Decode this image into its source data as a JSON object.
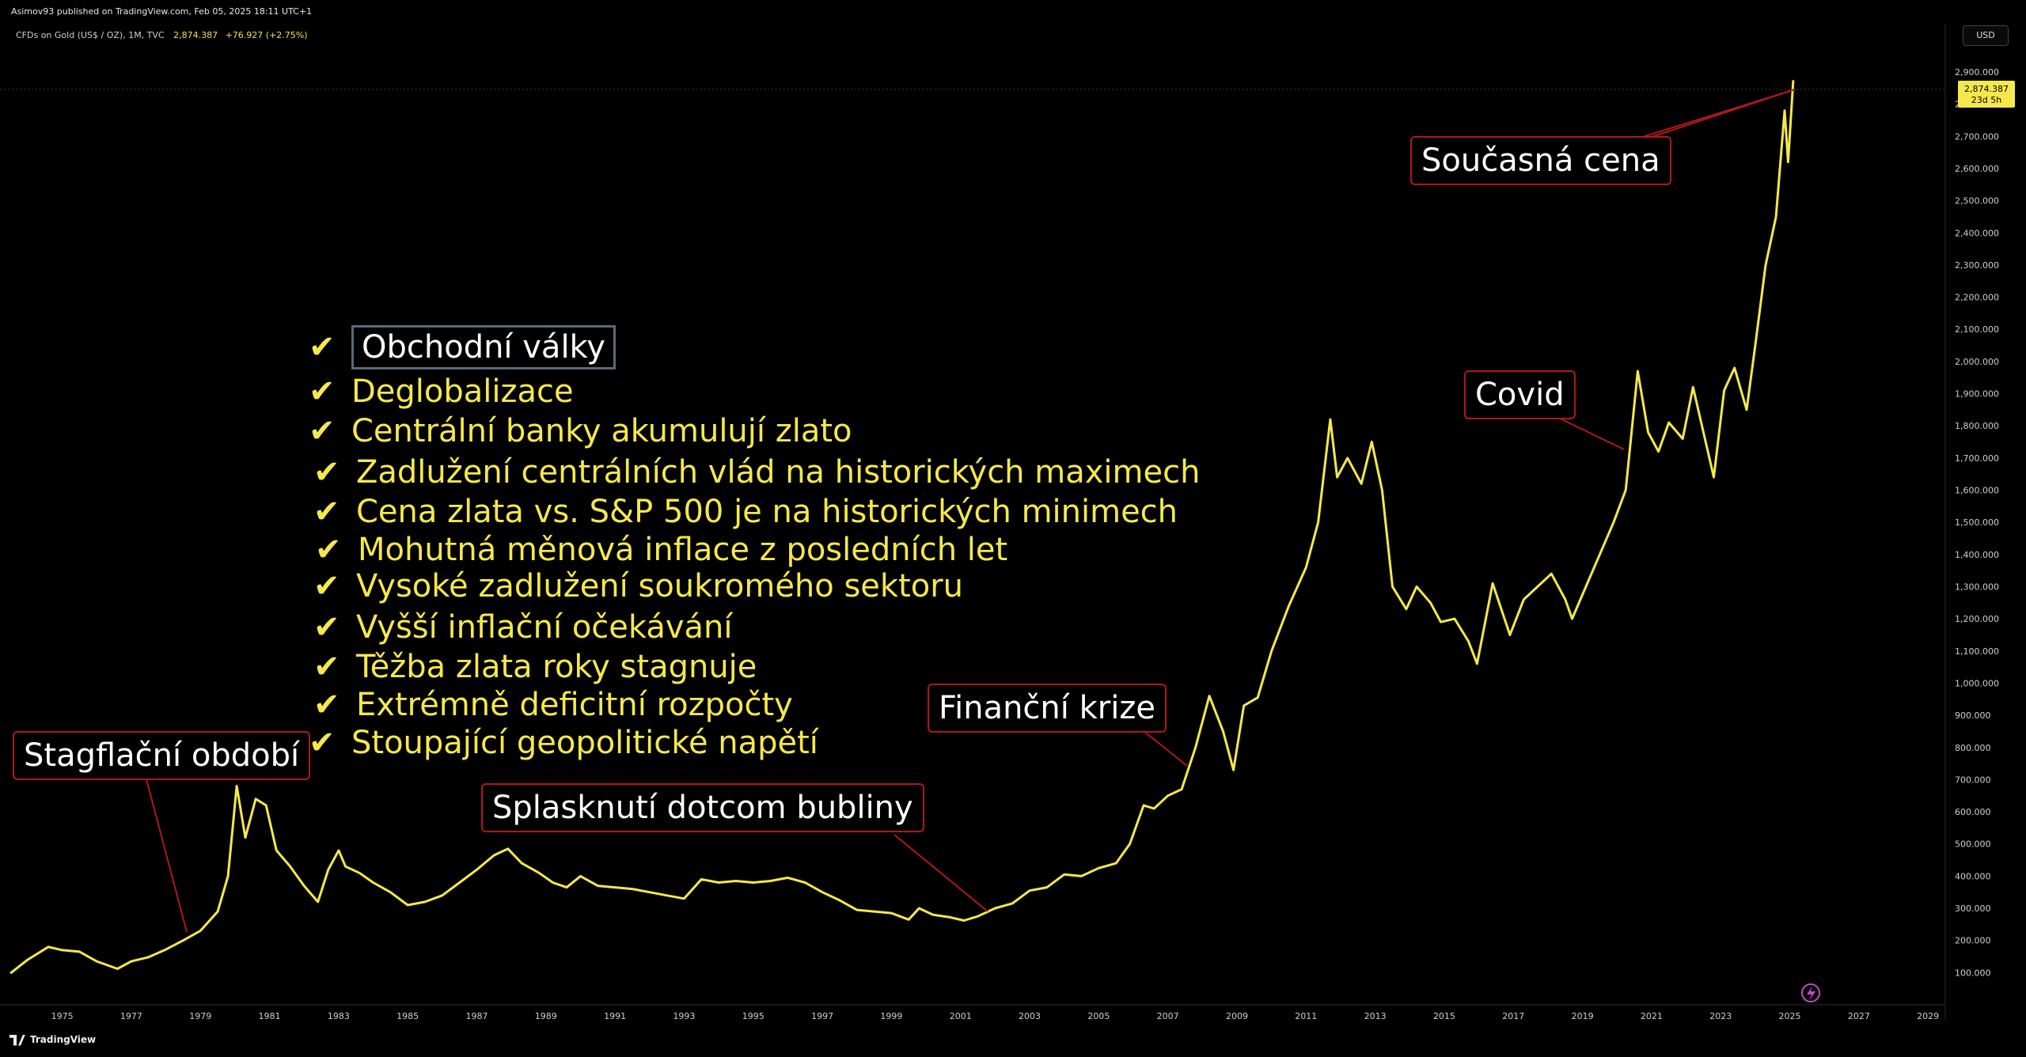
{
  "header": {
    "published": "Asimov93 published on TradingView.com, Feb 05, 2025 18:11 UTC+1",
    "symbol": "CFDs on Gold (US$ / OZ), 1M, TVC",
    "last": "2,874.387",
    "change": "+76.927 (+2.75%)",
    "currency": "USD"
  },
  "price_tag": {
    "value": "2,874.387",
    "countdown": "23d 5h"
  },
  "footer": {
    "brand": "TradingView"
  },
  "checklist": [
    "Obchodní války",
    "Deglobalizace",
    "Centrální banky akumulují zlato",
    "Zadlužení centrálních vlád na historických maximech",
    "Cena zlata vs. S&P 500 je na historických minimech",
    "Mohutná měnová inflace z posledních let",
    "Vysoké zadlužení soukromého sektoru",
    "Vyšší inflační očekávání",
    "Těžba zlata roky stagnuje",
    "Extrémně deficitní rozpočty",
    "Stoupající geopolitické napětí"
  ],
  "callouts": {
    "stagflation": "Stagflační období",
    "dotcom": "Splasknutí dotcom bubliny",
    "financial": "Finanční krize",
    "covid": "Covid",
    "current": "Současná cena"
  },
  "colors": {
    "line": "#f5e84c",
    "callout_border": "#b01818",
    "background": "#000000",
    "checklist": "#f5e84c"
  },
  "chart_data": {
    "type": "line",
    "x_unit": "year",
    "series": [
      {
        "points": [
          [
            1973.5,
            98
          ],
          [
            1974.0,
            140
          ],
          [
            1974.6,
            180
          ],
          [
            1975.0,
            170
          ],
          [
            1975.5,
            165
          ],
          [
            1976.0,
            135
          ],
          [
            1976.6,
            112
          ],
          [
            1977.0,
            135
          ],
          [
            1977.5,
            148
          ],
          [
            1978.0,
            172
          ],
          [
            1978.5,
            200
          ],
          [
            1979.0,
            230
          ],
          [
            1979.5,
            290
          ],
          [
            1979.8,
            400
          ],
          [
            1980.05,
            680
          ],
          [
            1980.3,
            520
          ],
          [
            1980.6,
            640
          ],
          [
            1980.9,
            620
          ],
          [
            1981.2,
            480
          ],
          [
            1981.6,
            430
          ],
          [
            1982.0,
            370
          ],
          [
            1982.4,
            320
          ],
          [
            1982.7,
            420
          ],
          [
            1983.0,
            480
          ],
          [
            1983.2,
            430
          ],
          [
            1983.6,
            410
          ],
          [
            1984.0,
            380
          ],
          [
            1984.5,
            350
          ],
          [
            1985.0,
            310
          ],
          [
            1985.5,
            320
          ],
          [
            1986.0,
            340
          ],
          [
            1986.5,
            380
          ],
          [
            1987.0,
            420
          ],
          [
            1987.5,
            465
          ],
          [
            1987.9,
            485
          ],
          [
            1988.3,
            440
          ],
          [
            1988.8,
            410
          ],
          [
            1989.2,
            380
          ],
          [
            1989.6,
            365
          ],
          [
            1990.0,
            400
          ],
          [
            1990.5,
            370
          ],
          [
            1991.0,
            365
          ],
          [
            1991.5,
            360
          ],
          [
            1992.0,
            350
          ],
          [
            1992.5,
            340
          ],
          [
            1993.0,
            330
          ],
          [
            1993.5,
            390
          ],
          [
            1994.0,
            380
          ],
          [
            1994.5,
            385
          ],
          [
            1995.0,
            380
          ],
          [
            1995.5,
            385
          ],
          [
            1996.0,
            395
          ],
          [
            1996.5,
            380
          ],
          [
            1997.0,
            350
          ],
          [
            1997.5,
            325
          ],
          [
            1998.0,
            295
          ],
          [
            1998.5,
            290
          ],
          [
            1999.0,
            285
          ],
          [
            1999.5,
            265
          ],
          [
            1999.8,
            300
          ],
          [
            2000.2,
            280
          ],
          [
            2000.7,
            272
          ],
          [
            2001.1,
            262
          ],
          [
            2001.5,
            275
          ],
          [
            2002.0,
            300
          ],
          [
            2002.5,
            315
          ],
          [
            2003.0,
            355
          ],
          [
            2003.5,
            365
          ],
          [
            2004.0,
            405
          ],
          [
            2004.5,
            400
          ],
          [
            2005.0,
            425
          ],
          [
            2005.5,
            440
          ],
          [
            2005.9,
            500
          ],
          [
            2006.3,
            620
          ],
          [
            2006.6,
            610
          ],
          [
            2007.0,
            650
          ],
          [
            2007.4,
            670
          ],
          [
            2007.8,
            800
          ],
          [
            2008.2,
            960
          ],
          [
            2008.6,
            850
          ],
          [
            2008.9,
            730
          ],
          [
            2009.2,
            930
          ],
          [
            2009.6,
            955
          ],
          [
            2010.0,
            1100
          ],
          [
            2010.5,
            1240
          ],
          [
            2011.0,
            1360
          ],
          [
            2011.35,
            1500
          ],
          [
            2011.7,
            1820
          ],
          [
            2011.9,
            1640
          ],
          [
            2012.2,
            1700
          ],
          [
            2012.6,
            1620
          ],
          [
            2012.9,
            1750
          ],
          [
            2013.2,
            1600
          ],
          [
            2013.5,
            1300
          ],
          [
            2013.9,
            1230
          ],
          [
            2014.2,
            1300
          ],
          [
            2014.6,
            1250
          ],
          [
            2014.9,
            1190
          ],
          [
            2015.3,
            1200
          ],
          [
            2015.7,
            1130
          ],
          [
            2015.95,
            1060
          ],
          [
            2016.4,
            1310
          ],
          [
            2016.9,
            1150
          ],
          [
            2017.3,
            1260
          ],
          [
            2017.7,
            1300
          ],
          [
            2018.1,
            1340
          ],
          [
            2018.5,
            1260
          ],
          [
            2018.7,
            1200
          ],
          [
            2019.1,
            1300
          ],
          [
            2019.5,
            1400
          ],
          [
            2019.9,
            1500
          ],
          [
            2020.25,
            1600
          ],
          [
            2020.6,
            1970
          ],
          [
            2020.9,
            1780
          ],
          [
            2021.2,
            1720
          ],
          [
            2021.5,
            1810
          ],
          [
            2021.9,
            1760
          ],
          [
            2022.2,
            1920
          ],
          [
            2022.5,
            1780
          ],
          [
            2022.8,
            1640
          ],
          [
            2023.1,
            1910
          ],
          [
            2023.4,
            1980
          ],
          [
            2023.75,
            1850
          ],
          [
            2024.0,
            2050
          ],
          [
            2024.3,
            2300
          ],
          [
            2024.6,
            2450
          ],
          [
            2024.85,
            2780
          ],
          [
            2024.95,
            2620
          ],
          [
            2025.1,
            2874.387
          ]
        ]
      }
    ],
    "x_ticks": [
      "1975",
      "1977",
      "1979",
      "1981",
      "1983",
      "1985",
      "1987",
      "1989",
      "1991",
      "1993",
      "1995",
      "1997",
      "1999",
      "2001",
      "2003",
      "2005",
      "2007",
      "2009",
      "2011",
      "2013",
      "2015",
      "2017",
      "2019",
      "2021",
      "2023",
      "2025",
      "2027",
      "2029"
    ],
    "y_ticks": [
      "100.000",
      "200.000",
      "300.000",
      "400.000",
      "500.000",
      "600.000",
      "700.000",
      "800.000",
      "900.000",
      "1,000.000",
      "1,100.000",
      "1,200.000",
      "1,300.000",
      "1,400.000",
      "1,500.000",
      "1,600.000",
      "1,700.000",
      "1,800.000",
      "1,900.000",
      "2,000.000",
      "2,100.000",
      "2,200.000",
      "2,300.000",
      "2,400.000",
      "2,500.000",
      "2,600.000",
      "2,700.000",
      "2,800.000",
      "2,900.000"
    ],
    "ylim": [
      0,
      3050
    ],
    "xlim": [
      1973.2,
      2029.5
    ],
    "grid": false,
    "legend": "none"
  }
}
